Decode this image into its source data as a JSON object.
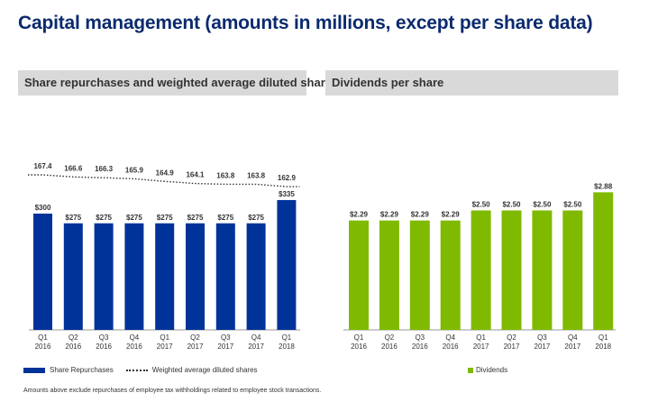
{
  "page": {
    "title": "Capital management (amounts in millions, except per share data)",
    "footnote": "Amounts above exclude repurchases of employee tax withholdings related to employee stock transactions."
  },
  "colors": {
    "title": "#0b2a6e",
    "repurchase_bar": "#003399",
    "dividend_bar": "#7fba00",
    "line": "#333333",
    "panel_header": "#d9d9d9"
  },
  "chart_data": [
    {
      "type": "bar",
      "title": "Share repurchases and weighted average diluted shares",
      "categories": [
        [
          "Q1",
          "2016"
        ],
        [
          "Q2",
          "2016"
        ],
        [
          "Q3",
          "2016"
        ],
        [
          "Q4",
          "2016"
        ],
        [
          "Q1",
          "2017"
        ],
        [
          "Q2",
          "2017"
        ],
        [
          "Q3",
          "2017"
        ],
        [
          "Q4",
          "2017"
        ],
        [
          "Q1",
          "2018"
        ]
      ],
      "series": [
        {
          "name": "Share Repurchases",
          "type": "bar",
          "values": [
            300,
            275,
            275,
            275,
            275,
            275,
            275,
            275,
            335
          ],
          "labels": [
            "$300",
            "$275",
            "$275",
            "$275",
            "$275",
            "$275",
            "$275",
            "$275",
            "$335"
          ]
        },
        {
          "name": "Weighted average diluted shares",
          "type": "line",
          "style": "dotted",
          "values": [
            167.4,
            166.6,
            166.3,
            165.9,
            164.9,
            164.1,
            163.8,
            163.8,
            162.9
          ],
          "labels": [
            "167.4",
            "166.6",
            "166.3",
            "165.9",
            "164.9",
            "164.1",
            "163.8",
            "163.8",
            "162.9"
          ]
        }
      ],
      "legend": "bottom-left",
      "grid": false
    },
    {
      "type": "bar",
      "title": "Dividends per share",
      "categories": [
        [
          "Q1",
          "2016"
        ],
        [
          "Q2",
          "2016"
        ],
        [
          "Q3",
          "2016"
        ],
        [
          "Q4",
          "2016"
        ],
        [
          "Q1",
          "2017"
        ],
        [
          "Q2",
          "2017"
        ],
        [
          "Q3",
          "2017"
        ],
        [
          "Q4",
          "2017"
        ],
        [
          "Q1",
          "2018"
        ]
      ],
      "series": [
        {
          "name": "Dividends",
          "type": "bar",
          "values": [
            2.29,
            2.29,
            2.29,
            2.29,
            2.5,
            2.5,
            2.5,
            2.5,
            2.88
          ],
          "labels": [
            "$2.29",
            "$2.29",
            "$2.29",
            "$2.29",
            "$2.50",
            "$2.50",
            "$2.50",
            "$2.50",
            "$2.88"
          ]
        }
      ],
      "legend": "bottom-center",
      "grid": false
    }
  ]
}
